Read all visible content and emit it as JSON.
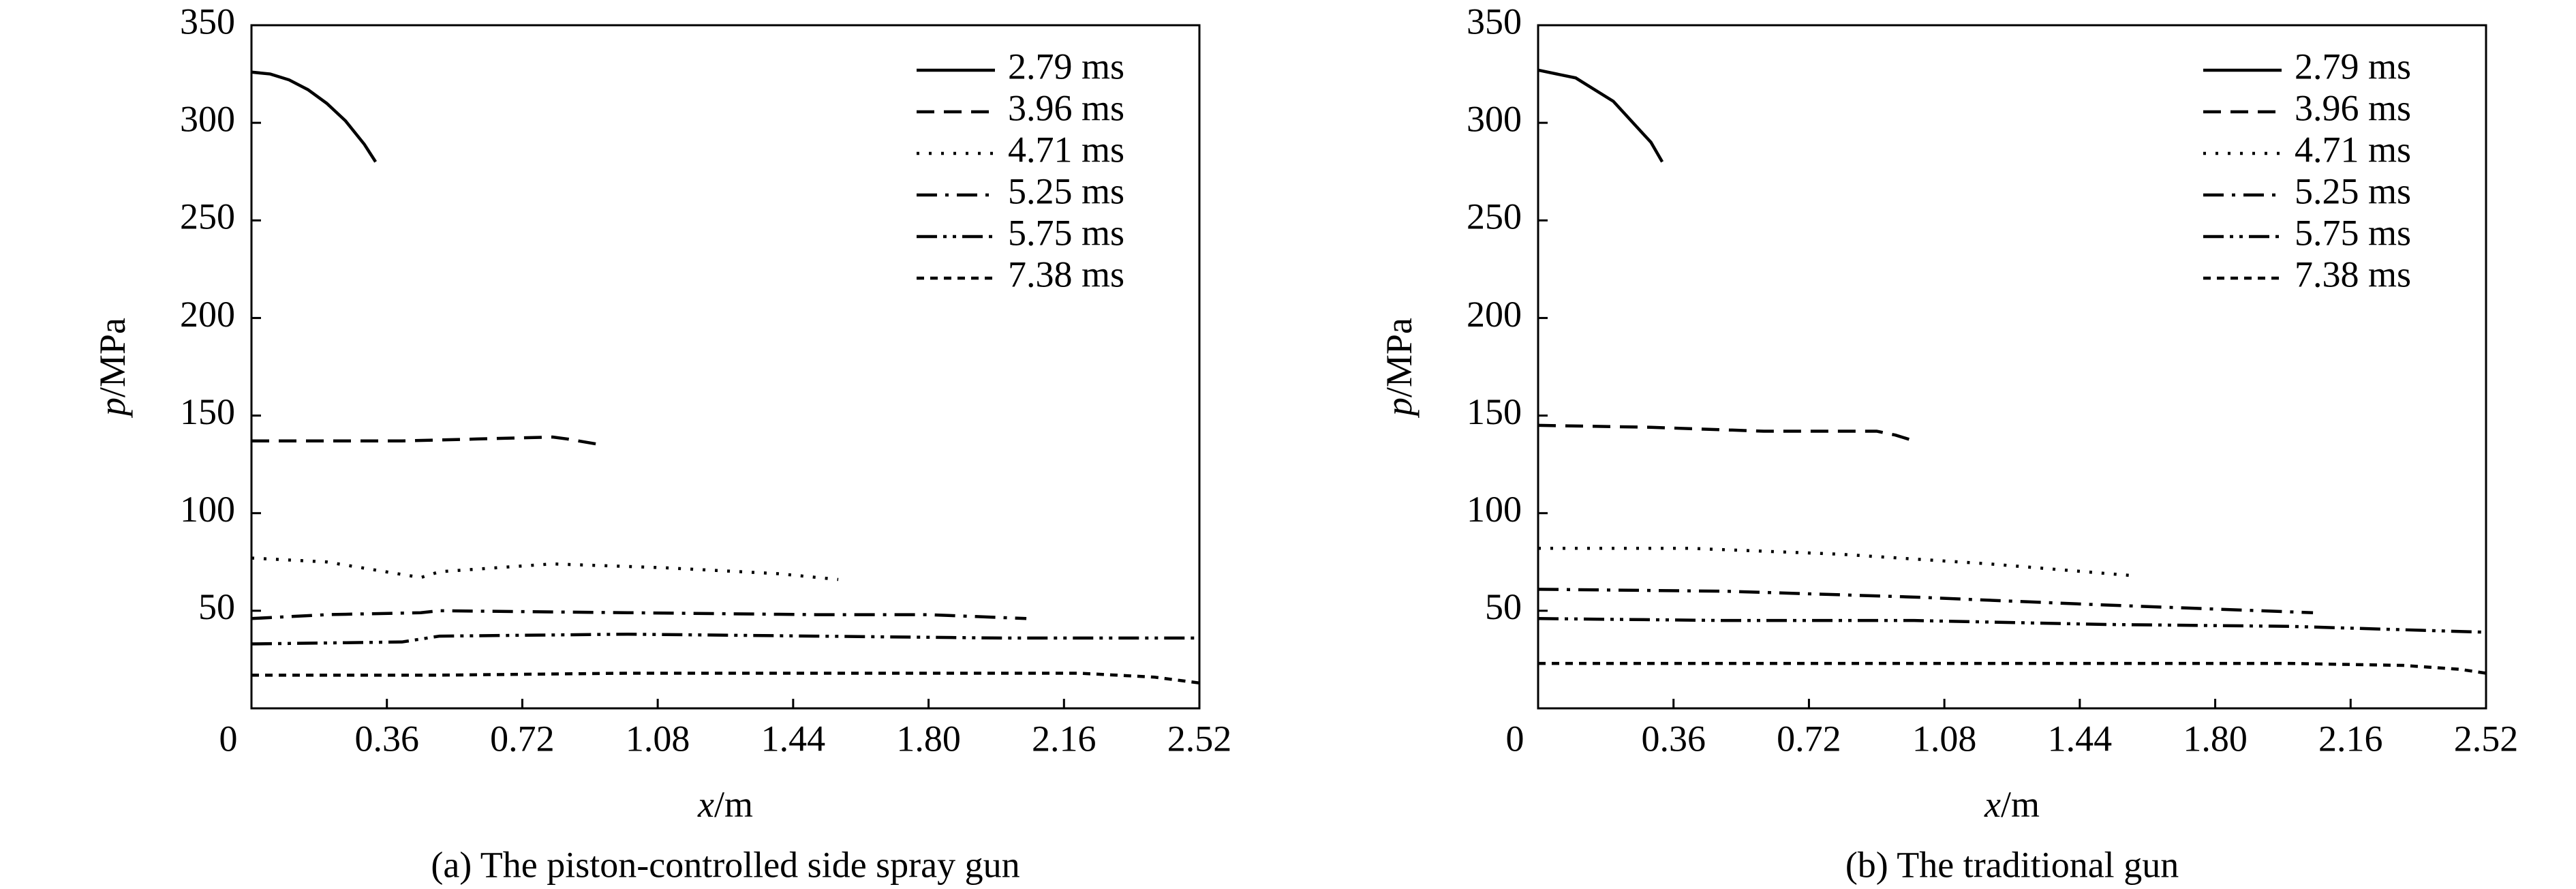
{
  "chart_data": [
    {
      "type": "line",
      "caption": "(a) The piston-controlled side spray gun",
      "x_label": "x/m",
      "y_label": "p/MPa",
      "xlim": [
        0,
        2.52
      ],
      "ylim": [
        0,
        350
      ],
      "xticks": [
        0,
        0.36,
        0.72,
        1.08,
        1.44,
        {
          "value": 1.8,
          "label": "1.80"
        },
        2.16,
        2.52
      ],
      "yticks": [
        50,
        100,
        150,
        200,
        250,
        300,
        350
      ],
      "legend": "upper right",
      "grid": false,
      "series": [
        {
          "name": "2.79 ms",
          "color": "#000000",
          "linestyle": "solid",
          "x": [
            0,
            0.05,
            0.1,
            0.15,
            0.2,
            0.25,
            0.3,
            0.33
          ],
          "values": [
            326,
            325,
            322,
            317,
            310,
            301,
            289,
            280
          ]
        },
        {
          "name": "3.96 ms",
          "color": "#000000",
          "linestyle": "dashed",
          "x": [
            0,
            0.2,
            0.4,
            0.6,
            0.8,
            0.84,
            0.93
          ],
          "values": [
            137,
            137,
            137,
            138,
            139,
            138,
            135
          ]
        },
        {
          "name": "4.71 ms",
          "color": "#000000",
          "linestyle": "dotted",
          "x": [
            0,
            0.2,
            0.45,
            0.5,
            0.8,
            1.1,
            1.4,
            1.56
          ],
          "values": [
            77,
            75,
            67,
            70,
            74,
            72,
            69,
            66
          ]
        },
        {
          "name": "5.25 ms",
          "color": "#000000",
          "linestyle": "dashdot",
          "x": [
            0,
            0.2,
            0.45,
            0.5,
            1.0,
            1.5,
            1.8,
            2.06
          ],
          "values": [
            46,
            48,
            49,
            50,
            49,
            48,
            48,
            46
          ]
        },
        {
          "name": "5.75 ms",
          "color": "#000000",
          "linestyle": "dashdotdot",
          "x": [
            0,
            0.4,
            0.5,
            1.0,
            1.5,
            2.0,
            2.52
          ],
          "values": [
            33,
            34,
            37,
            38,
            37,
            36,
            36
          ]
        },
        {
          "name": "7.38 ms",
          "color": "#000000",
          "linestyle": "shortdash",
          "x": [
            0,
            0.5,
            1.0,
            1.5,
            2.2,
            2.4,
            2.52
          ],
          "values": [
            17,
            17,
            18,
            18,
            18,
            16,
            13
          ]
        }
      ]
    },
    {
      "type": "line",
      "caption": "(b) The traditional gun",
      "x_label": "x/m",
      "y_label": "p/MPa",
      "xlim": [
        0,
        2.52
      ],
      "ylim": [
        0,
        350
      ],
      "xticks": [
        0,
        0.36,
        0.72,
        1.08,
        1.44,
        {
          "value": 1.8,
          "label": "1.80"
        },
        2.16,
        2.52
      ],
      "yticks": [
        50,
        100,
        150,
        200,
        250,
        300,
        350
      ],
      "legend": "upper right",
      "grid": false,
      "series": [
        {
          "name": "2.79 ms",
          "color": "#000000",
          "linestyle": "solid",
          "x": [
            0,
            0.1,
            0.2,
            0.3,
            0.33
          ],
          "values": [
            327,
            323,
            311,
            290,
            280
          ]
        },
        {
          "name": "3.96 ms",
          "color": "#000000",
          "linestyle": "dashed",
          "x": [
            0,
            0.3,
            0.6,
            0.9,
            0.95,
            1.0
          ],
          "values": [
            145,
            144,
            142,
            142,
            140,
            137
          ]
        },
        {
          "name": "4.71 ms",
          "color": "#000000",
          "linestyle": "dotted",
          "x": [
            0,
            0.4,
            0.8,
            1.2,
            1.58
          ],
          "values": [
            82,
            82,
            79,
            74,
            68
          ]
        },
        {
          "name": "5.25 ms",
          "color": "#000000",
          "linestyle": "dashdot",
          "x": [
            0,
            0.5,
            1.0,
            1.5,
            2.06
          ],
          "values": [
            61,
            60,
            57,
            53,
            49
          ]
        },
        {
          "name": "5.75 ms",
          "color": "#000000",
          "linestyle": "dashdotdot",
          "x": [
            0,
            0.5,
            1.0,
            1.5,
            2.0,
            2.52
          ],
          "values": [
            46,
            45,
            45,
            43,
            42,
            39
          ]
        },
        {
          "name": "7.38 ms",
          "color": "#000000",
          "linestyle": "shortdash",
          "x": [
            0,
            1.0,
            2.0,
            2.3,
            2.45,
            2.52
          ],
          "values": [
            23,
            23,
            23,
            22,
            20,
            18
          ]
        }
      ]
    }
  ]
}
